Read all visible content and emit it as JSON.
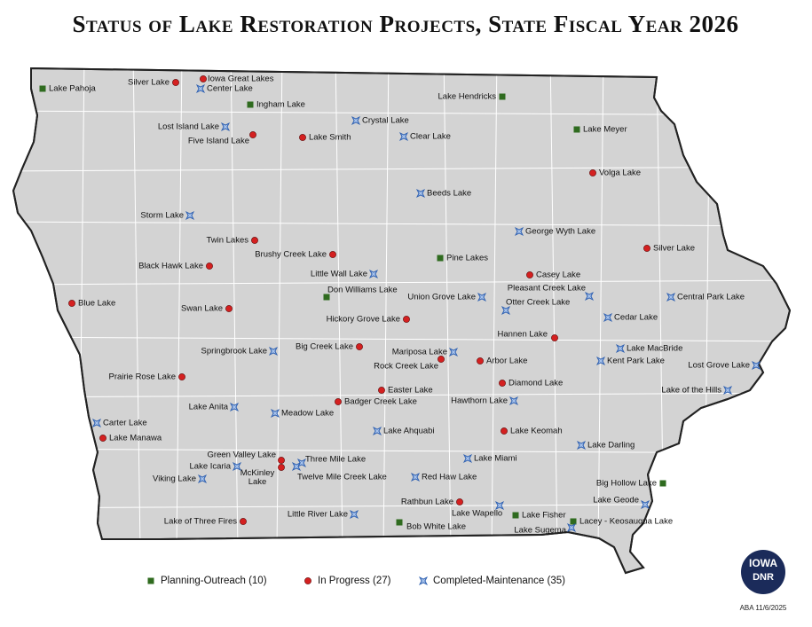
{
  "title": "Status of Lake Restoration Projects, State Fiscal Year 2026",
  "groups": [
    {
      "label": "Planning-Outreach (10)",
      "color": "#2f6b1f",
      "marker": "square",
      "lakes": [
        "Lake Pahoja",
        "Ingham Lake",
        "Lake Hendricks",
        "Lake Meyer",
        "Pine Lakes",
        "Don Williams Lake",
        "Big Hollow Lake",
        "Lake Fisher",
        "Lacey - Keosauqua Lake",
        "Bob White Lake"
      ]
    },
    {
      "label": "In Progress (27)",
      "color": "#d42020",
      "marker": "circle",
      "lakes": [
        "Silver Lake",
        "Iowa Great Lakes",
        "Five Island Lake",
        "Lake Smith",
        "Volga Lake",
        "Twin Lakes",
        "Brushy Creek Lake",
        "Black Hawk Lake",
        "Silver Lake",
        "Casey Lake",
        "Blue Lake",
        "Swan Lake",
        "Hickory Grove Lake",
        "Hannen Lake",
        "Big Creek Lake",
        "Rock Creek Lake",
        "Arbor Lake",
        "Prairie Rose Lake",
        "Diamond Lake",
        "Easter Lake",
        "Badger Creek Lake",
        "Lake Keomah",
        "Lake Manawa",
        "Green Valley Lake",
        "McKinley Lake",
        "Rathbun Lake",
        "Lake of Three Fires"
      ]
    },
    {
      "label": "Completed-Maintenance (35)",
      "color": "#2d5fb0",
      "marker": "star",
      "lakes": [
        "Center Lake",
        "Lost Island Lake",
        "Crystal Lake",
        "Clear Lake",
        "Beeds Lake",
        "Storm Lake",
        "George Wyth Lake",
        "Little Wall Lake",
        "Union Grove Lake",
        "Otter Creek Lake",
        "Pleasant Creek Lake",
        "Central Park Lake",
        "Cedar Lake",
        "Springbrook Lake",
        "Mariposa Lake",
        "Lake MacBride",
        "Kent Park Lake",
        "Lost Grove Lake",
        "Lake of the Hills",
        "Hawthorn Lake",
        "Lake Anita",
        "Meadow Lake",
        "Carter Lake",
        "Lake Ahquabi",
        "Lake Darling",
        "Three Mile Lake",
        "Twelve Mile Creek Lake",
        "Lake Icaria",
        "Lake Miami",
        "Viking Lake",
        "Red Haw Lake",
        "Little River Lake",
        "Lake Wapello",
        "Lake Geode",
        "Lake Sugema"
      ]
    }
  ],
  "logo": {
    "top": "IOWA",
    "bottom": "DNR"
  },
  "credit": "ABA 11/6/2025"
}
